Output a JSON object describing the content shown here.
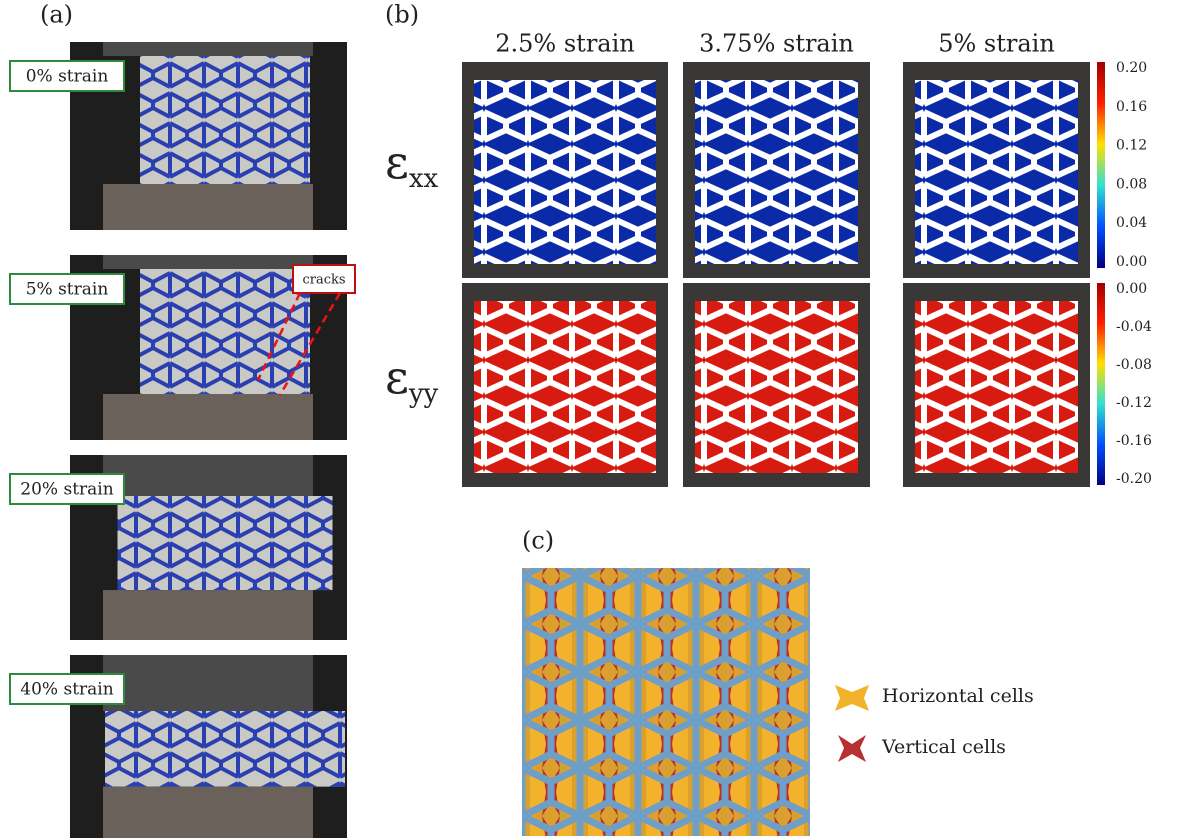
{
  "panel_a": {
    "label": "(a)",
    "photos": [
      {
        "strain": "0% strain"
      },
      {
        "strain": "5% strain"
      },
      {
        "strain": "20% strain"
      },
      {
        "strain": "40% strain"
      }
    ],
    "annotation": "cracks"
  },
  "panel_b": {
    "label": "(b)",
    "columns": [
      "2.5% strain",
      "3.75% strain",
      "5% strain"
    ],
    "rows": [
      {
        "symbol": "ε",
        "subscript": "xx",
        "colorbar_ticks": [
          "0.20",
          "0.16",
          "0.12",
          "0.08",
          "0.04",
          "0.00"
        ]
      },
      {
        "symbol": "ε",
        "subscript": "yy",
        "colorbar_ticks": [
          "0.00",
          "-0.04",
          "-0.08",
          "-0.12",
          "-0.16",
          "-0.20"
        ]
      }
    ]
  },
  "panel_c": {
    "label": "(c)",
    "legend": [
      "Horizontal cells",
      "Vertical cells"
    ]
  }
}
